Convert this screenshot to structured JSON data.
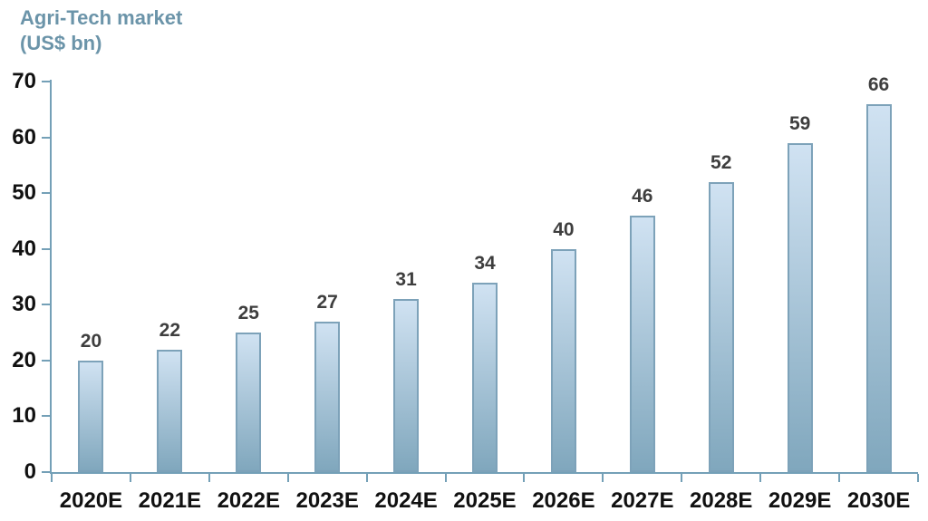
{
  "title": {
    "line1": "Agri-Tech market",
    "line2": "(US$ bn)"
  },
  "colors": {
    "title_text": "#6B94A9",
    "axis_line": "#74A0B7",
    "bar_border": "#7DA2B9",
    "bar_gradient_top": "#D0E2F2",
    "bar_gradient_bottom": "#80A7BD",
    "data_label_text": "#3E3E3E",
    "axis_label_text": "#111111",
    "background": "#FFFFFF"
  },
  "chart_data": {
    "type": "bar",
    "title": "Agri-Tech market (US$ bn)",
    "categories": [
      "2020E",
      "2021E",
      "2022E",
      "2023E",
      "2024E",
      "2025E",
      "2026E",
      "2027E",
      "2028E",
      "2029E",
      "2030E"
    ],
    "values": [
      20,
      22,
      25,
      27,
      31,
      34,
      40,
      46,
      52,
      59,
      66
    ],
    "data_labels": [
      "20",
      "22",
      "25",
      "27",
      "31",
      "34",
      "40",
      "46",
      "52",
      "59",
      "66"
    ],
    "xlabel": "",
    "ylabel": "Agri-Tech market (US$ bn)",
    "ylim": [
      0,
      70
    ],
    "yticks": [
      0,
      10,
      20,
      30,
      40,
      50,
      60,
      70
    ],
    "ytick_interval": 10,
    "grid": false,
    "legend": false,
    "data_labels_position": "above-bar"
  }
}
